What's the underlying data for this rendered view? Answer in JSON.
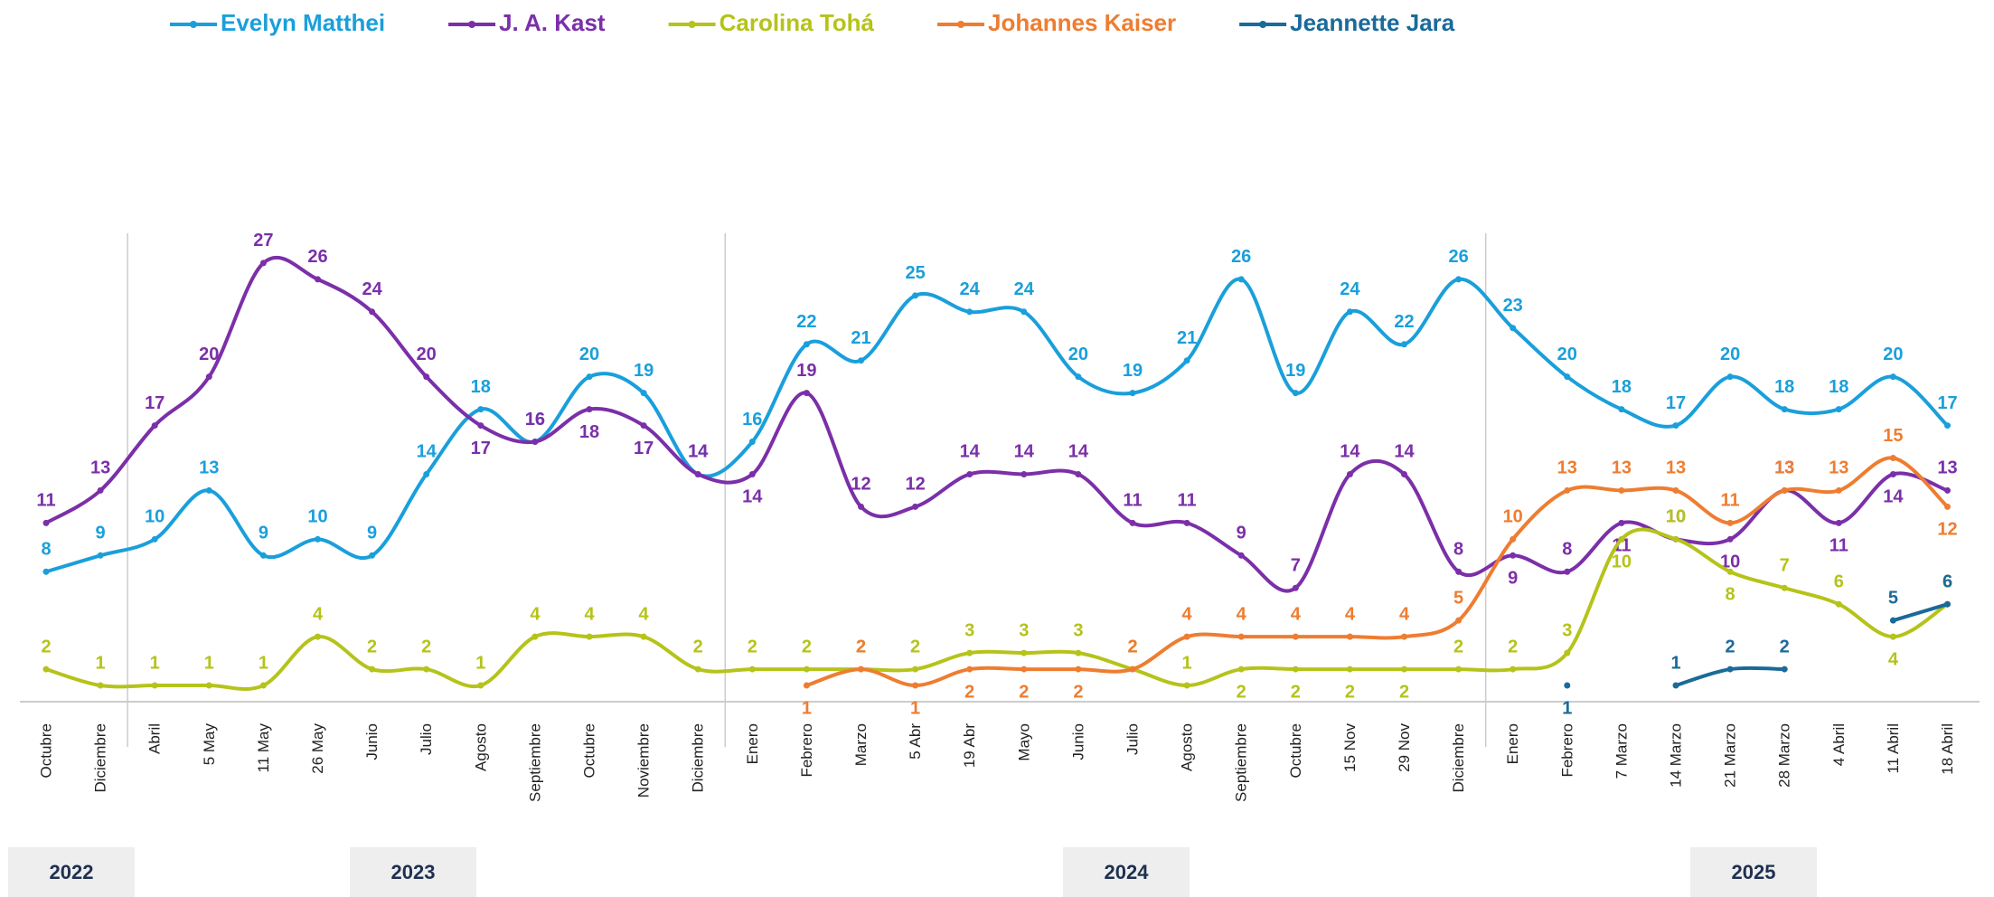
{
  "chart_data": {
    "type": "line",
    "categories": [
      "Octubre",
      "Diciembre",
      "Abril",
      "5 May",
      "11 May",
      "26 May",
      "Junio",
      "Julio",
      "Agosto",
      "Septiembre",
      "Octubre",
      "Noviembre",
      "Diciembre",
      "Enero",
      "Febrero",
      "Marzo",
      "5 Abr",
      "19 Abr",
      "Mayo",
      "Junio",
      "Julio",
      "Agosto",
      "Septiembre",
      "Octubre",
      "15 Nov",
      "29 Nov",
      "Diciembre",
      "Enero",
      "Febrero",
      "7 Marzo",
      "14 Marzo",
      "21 Marzo",
      "28 Marzo",
      "4 Abril",
      "11 Abril",
      "18 Abril"
    ],
    "years": [
      "2022",
      "2023",
      "2024",
      "2025"
    ],
    "series": [
      {
        "name": "Evelyn Matthei",
        "color": "#1a9fdb",
        "values": [
          8,
          9,
          10,
          13,
          9,
          10,
          9,
          14,
          18,
          16,
          20,
          19,
          14,
          16,
          22,
          21,
          25,
          24,
          24,
          20,
          19,
          21,
          26,
          19,
          24,
          22,
          26,
          23,
          20,
          18,
          17,
          20,
          18,
          18,
          20,
          17
        ]
      },
      {
        "name": "J. A. Kast",
        "color": "#7b2fa8",
        "values": [
          11,
          13,
          17,
          20,
          27,
          26,
          24,
          20,
          17,
          16,
          18,
          17,
          14,
          14,
          19,
          12,
          12,
          14,
          14,
          14,
          11,
          11,
          9,
          7,
          14,
          14,
          8,
          9,
          8,
          11,
          10,
          10,
          13,
          11,
          14,
          13
        ]
      },
      {
        "name": "Carolina Tohá",
        "color": "#b5c31a",
        "values": [
          2,
          1,
          1,
          1,
          1,
          4,
          2,
          2,
          1,
          4,
          4,
          4,
          2,
          2,
          2,
          2,
          2,
          3,
          3,
          3,
          2,
          1,
          2,
          2,
          2,
          2,
          2,
          2,
          3,
          10,
          10,
          8,
          7,
          6,
          4,
          6
        ]
      },
      {
        "name": "Johannes Kaiser",
        "color": "#ee7d31",
        "values": [
          null,
          null,
          null,
          null,
          null,
          null,
          null,
          null,
          null,
          null,
          null,
          null,
          null,
          null,
          1,
          2,
          1,
          2,
          2,
          2,
          2,
          4,
          4,
          4,
          4,
          4,
          5,
          10,
          13,
          13,
          13,
          11,
          13,
          13,
          15,
          12
        ]
      },
      {
        "name": "Jeannette Jara",
        "color": "#1a6a9a",
        "values": [
          null,
          null,
          null,
          null,
          null,
          null,
          null,
          null,
          null,
          null,
          null,
          null,
          null,
          null,
          null,
          null,
          null,
          null,
          null,
          null,
          null,
          null,
          null,
          null,
          null,
          null,
          null,
          null,
          1,
          null,
          1,
          2,
          2,
          null,
          5,
          6
        ]
      }
    ],
    "ylim": [
      0,
      30
    ],
    "legend": "top",
    "data_labels": true
  }
}
